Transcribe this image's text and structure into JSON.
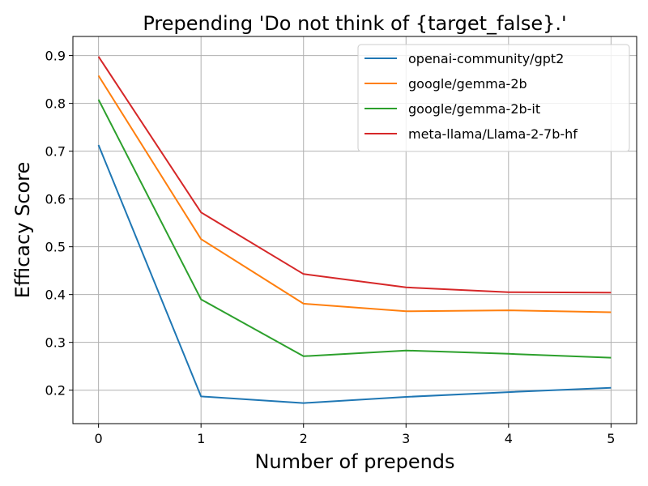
{
  "chart_data": {
    "type": "line",
    "title": "Prepending 'Do not think of {target_false}.'",
    "xlabel": "Number of prepends",
    "ylabel": "Efficacy Score",
    "x": [
      0,
      1,
      2,
      3,
      4,
      5
    ],
    "xticks": [
      "0",
      "1",
      "2",
      "3",
      "4",
      "5"
    ],
    "yticks": [
      "0.2",
      "0.3",
      "0.4",
      "0.5",
      "0.6",
      "0.7",
      "0.8",
      "0.9"
    ],
    "xlim": [
      -0.25,
      5.25
    ],
    "ylim": [
      0.13,
      0.94
    ],
    "grid": true,
    "legend_position": "top-right",
    "series": [
      {
        "name": "openai-community/gpt2",
        "color": "#1f77b4",
        "values": [
          0.713,
          0.187,
          0.173,
          0.186,
          0.196,
          0.205
        ]
      },
      {
        "name": "google/gemma-2b",
        "color": "#ff7f0e",
        "values": [
          0.858,
          0.516,
          0.381,
          0.365,
          0.367,
          0.363
        ]
      },
      {
        "name": "google/gemma-2b-it",
        "color": "#2ca02c",
        "values": [
          0.808,
          0.39,
          0.271,
          0.283,
          0.276,
          0.268
        ]
      },
      {
        "name": "meta-llama/Llama-2-7b-hf",
        "color": "#d62728",
        "values": [
          0.898,
          0.572,
          0.443,
          0.415,
          0.405,
          0.404
        ]
      }
    ]
  }
}
